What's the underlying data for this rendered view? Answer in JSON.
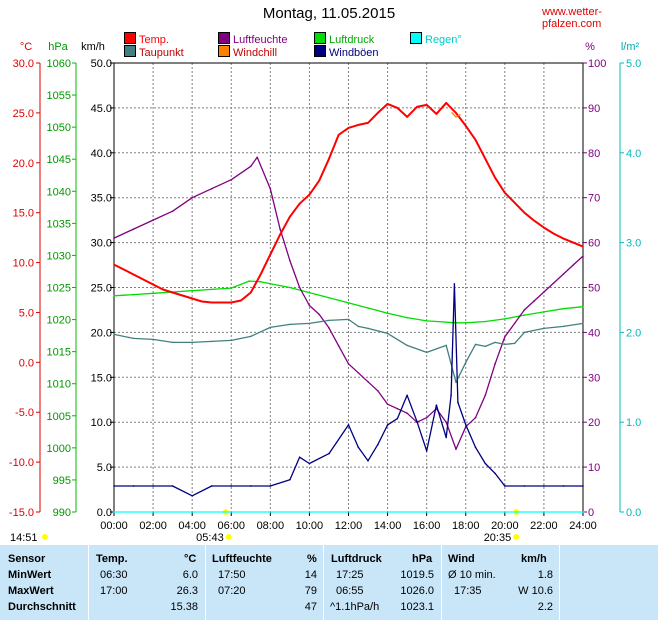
{
  "header": {
    "title": "Montag, 11.05.2015",
    "site": "www.wetter-pfalzen.com"
  },
  "legend": [
    {
      "label": "Temp.",
      "color": "#ff0000"
    },
    {
      "label": "Luftfeuchte",
      "color": "#800080"
    },
    {
      "label": "Luftdruck",
      "color": "#00dd00"
    },
    {
      "label": "Regen°",
      "color": "#00ffff"
    },
    {
      "label": "Taupunkt",
      "color": "#408080"
    },
    {
      "label": "Windchill",
      "color": "#ff8000"
    },
    {
      "label": "Windböen",
      "color": "#000080"
    }
  ],
  "axes": {
    "temp_unit": "°C",
    "pressure_unit": "hPa",
    "wind_unit": "km/h",
    "humidity_unit": "%",
    "rain_unit": "l/m²",
    "temp_ticks": [
      "30.0",
      "25.0",
      "20.0",
      "15.0",
      "10.0",
      "5.0",
      "0.0",
      "-5.0",
      "-10.0",
      "-15.0"
    ],
    "pressure_ticks": [
      "1060",
      "1055",
      "1050",
      "1045",
      "1040",
      "1035",
      "1030",
      "1025",
      "1020",
      "1015",
      "1010",
      "1005",
      "1000",
      "995",
      "990"
    ],
    "wind_ticks": [
      "50.0",
      "45.0",
      "40.0",
      "35.0",
      "30.0",
      "25.0",
      "20.0",
      "15.0",
      "10.0",
      "5.0",
      "0.0"
    ],
    "humidity_ticks": [
      "100",
      "90",
      "80",
      "70",
      "60",
      "50",
      "40",
      "30",
      "20",
      "10",
      "0"
    ],
    "rain_ticks": [
      "5.0",
      "4.0",
      "3.0",
      "2.0",
      "1.0",
      "0.0"
    ],
    "x_ticks": [
      "00:00",
      "02:00",
      "04:00",
      "06:00",
      "08:00",
      "10:00",
      "12:00",
      "14:00",
      "16:00",
      "18:00",
      "20:00",
      "22:00",
      "24:00"
    ]
  },
  "sun": {
    "sunrise": "05:43",
    "sunset": "20:35",
    "daylight": "14:51",
    "sun_color": "#ffff00"
  },
  "chart_data": {
    "type": "line",
    "x_unit": "hours",
    "xlim": [
      0,
      24
    ],
    "series": [
      {
        "name": "Temp.",
        "axis": "temp",
        "ylim": [
          -15,
          30
        ],
        "color": "#ff0000",
        "x": [
          0,
          0.5,
          1,
          1.5,
          2,
          2.5,
          3,
          3.5,
          4,
          4.5,
          5,
          5.5,
          6,
          6.5,
          7,
          7.5,
          8,
          8.5,
          9,
          9.5,
          10,
          10.5,
          11,
          11.5,
          12,
          12.5,
          13,
          13.5,
          14,
          14.5,
          15,
          15.5,
          16,
          16.5,
          17,
          17.5,
          18,
          18.5,
          19,
          19.5,
          20,
          20.5,
          21,
          21.5,
          22,
          22.5,
          23,
          23.5,
          24
        ],
        "values": [
          9.8,
          9.3,
          8.8,
          8.3,
          7.8,
          7.3,
          7.0,
          6.7,
          6.4,
          6.1,
          6.0,
          6.0,
          6.0,
          6.2,
          7.0,
          8.8,
          10.8,
          12.8,
          14.6,
          15.9,
          16.8,
          18.2,
          20.4,
          22.8,
          23.5,
          23.8,
          24.0,
          25.0,
          25.9,
          25.5,
          24.6,
          25.6,
          25.8,
          24.9,
          26.0,
          25.0,
          23.7,
          22.3,
          20.4,
          18.5,
          17.0,
          16.0,
          15.0,
          14.2,
          13.5,
          12.9,
          12.4,
          12.0,
          11.6
        ]
      },
      {
        "name": "Taupunkt",
        "axis": "temp",
        "ylim": [
          -15,
          30
        ],
        "color": "#408080",
        "x": [
          0,
          1,
          2,
          3,
          4,
          5,
          6,
          7,
          8,
          9,
          10,
          11,
          12,
          12.5,
          13,
          14,
          15,
          16,
          17,
          17.5,
          18,
          18.5,
          19,
          19.5,
          20,
          20.5,
          21,
          22,
          23,
          24
        ],
        "values": [
          2.8,
          2.4,
          2.3,
          2.0,
          2.0,
          2.1,
          2.2,
          2.6,
          3.5,
          3.8,
          3.9,
          4.2,
          4.3,
          3.6,
          3.4,
          2.9,
          1.7,
          1.0,
          1.7,
          -2.0,
          0.0,
          1.8,
          1.6,
          2.0,
          1.8,
          1.9,
          3.0,
          3.4,
          3.6,
          3.9
        ]
      },
      {
        "name": "Luftfeuchte",
        "axis": "humidity",
        "ylim": [
          0,
          100
        ],
        "color": "#800080",
        "x": [
          0,
          1,
          2,
          3,
          4,
          5,
          6,
          7,
          7.33,
          8,
          8.5,
          9,
          9.5,
          10,
          10.5,
          11,
          11.5,
          12,
          12.5,
          13,
          13.5,
          14,
          14.5,
          15,
          15.5,
          16,
          16.5,
          17,
          17.5,
          18,
          18.5,
          19,
          19.5,
          20,
          20.5,
          21,
          21.5,
          22,
          22.5,
          23,
          23.5,
          24
        ],
        "values": [
          61,
          63,
          65,
          67,
          70,
          72,
          74,
          77,
          79,
          72,
          63,
          56,
          50,
          46,
          44,
          41,
          37,
          33,
          31,
          29,
          27,
          24,
          23,
          22,
          20,
          21,
          23,
          20,
          14,
          19,
          21,
          26,
          33,
          39,
          42,
          45,
          47,
          49,
          51,
          53,
          55,
          57
        ]
      },
      {
        "name": "Luftdruck",
        "axis": "pressure",
        "ylim": [
          990,
          1060
        ],
        "color": "#00dd00",
        "x": [
          0,
          1,
          2,
          3,
          4,
          5,
          6,
          6.92,
          7.5,
          8,
          9,
          10,
          11,
          12,
          13,
          14,
          15,
          16,
          17,
          17.42,
          18,
          19,
          20,
          21,
          22,
          23,
          24
        ],
        "values": [
          1023.7,
          1023.9,
          1024.1,
          1024.3,
          1024.5,
          1024.7,
          1024.9,
          1026.0,
          1025.9,
          1025.6,
          1025.0,
          1024.2,
          1023.4,
          1022.6,
          1021.8,
          1021.0,
          1020.3,
          1019.8,
          1019.6,
          1019.5,
          1019.5,
          1019.7,
          1020.1,
          1020.7,
          1021.2,
          1021.7,
          1022.0
        ]
      },
      {
        "name": "Windböen",
        "axis": "wind",
        "ylim": [
          0,
          50
        ],
        "color": "#000080",
        "x": [
          0,
          1,
          2,
          3,
          4,
          5,
          6,
          7,
          8,
          9,
          9.5,
          10,
          11,
          12,
          12.5,
          13,
          13.5,
          14,
          14.5,
          15,
          15.5,
          16,
          16.5,
          17,
          17.25,
          17.42,
          17.6,
          18,
          18.5,
          19,
          19.5,
          20,
          21,
          22,
          23,
          24
        ],
        "values": [
          2.9,
          2.9,
          2.9,
          2.9,
          1.8,
          2.9,
          2.9,
          2.9,
          2.9,
          3.6,
          6.1,
          5.4,
          6.5,
          9.7,
          7.2,
          5.7,
          7.5,
          9.7,
          10.4,
          13.0,
          10.1,
          6.8,
          11.9,
          8.3,
          13.0,
          25.4,
          12.2,
          9.7,
          7.2,
          5.4,
          4.3,
          2.9,
          2.9,
          2.9,
          2.9,
          2.9
        ]
      },
      {
        "name": "Windchill",
        "axis": "temp",
        "ylim": [
          -15,
          30
        ],
        "color": "#ff8000",
        "x": [
          17.3,
          17.5,
          17.7
        ],
        "values": [
          25.0,
          24.6,
          24.8
        ]
      },
      {
        "name": "Regen°",
        "axis": "rain",
        "ylim": [
          0,
          5
        ],
        "color": "#00ffff",
        "x": [
          0,
          24
        ],
        "values": [
          0.0,
          0.0
        ]
      }
    ]
  },
  "stats": {
    "headers": {
      "sensor": "Sensor",
      "temp": "Temp.",
      "temp_unit": "°C",
      "hum": "Luftfeuchte",
      "hum_unit": "%",
      "press": "Luftdruck",
      "press_unit": "hPa",
      "wind": "Wind",
      "wind_unit": "km/h"
    },
    "rows": [
      {
        "label": "MinWert",
        "temp_time": "06:30",
        "temp_val": "6.0",
        "hum_time": "17:50",
        "hum_val": "14",
        "press_time": "17:25",
        "press_val": "1019.5",
        "wind_time": "Ø 10 min.",
        "wind_val": "1.8"
      },
      {
        "label": "MaxWert",
        "temp_time": "17:00",
        "temp_val": "26.3",
        "hum_time": "07:20",
        "hum_val": "79",
        "press_time": "06:55",
        "press_val": "1026.0",
        "wind_time": "17:35",
        "wind_val": "W 10.6"
      },
      {
        "label": "Durchschnitt",
        "temp_time": "",
        "temp_val": "15.38",
        "hum_time": "",
        "hum_val": "47",
        "press_time": "^1.1hPa/h",
        "press_val": "1023.1",
        "wind_time": "",
        "wind_val": "2.2"
      }
    ]
  }
}
